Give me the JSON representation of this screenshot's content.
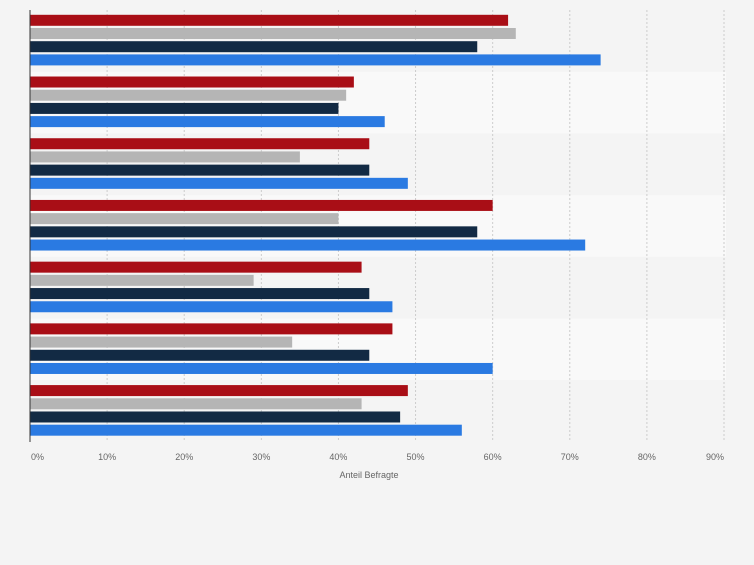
{
  "chart_data": {
    "type": "bar",
    "orientation": "horizontal",
    "xlabel": "Anteil Befragte",
    "xlim": [
      0,
      90
    ],
    "x_ticks": [
      "0%",
      "10%",
      "20%",
      "30%",
      "40%",
      "50%",
      "60%",
      "70%",
      "80%",
      "90%"
    ],
    "grid": "vertical dashed",
    "legend": "none",
    "groups": 7,
    "series": [
      {
        "values": [
          62,
          42,
          44,
          60,
          43,
          47,
          49
        ],
        "color": "#a90e16"
      },
      {
        "values": [
          63,
          41,
          35,
          40,
          29,
          34,
          43
        ],
        "color": "#b5b5b5"
      },
      {
        "values": [
          58,
          40,
          44,
          58,
          44,
          44,
          48
        ],
        "color": "#122a44"
      },
      {
        "values": [
          74,
          46,
          49,
          72,
          47,
          60,
          56
        ],
        "color": "#2a7ae2"
      }
    ]
  },
  "colors": {
    "background": "#f4f4f4",
    "band_light": "#f9f9f9",
    "grid": "#cccccc",
    "axis": "#333333",
    "tick_text": "#666666"
  }
}
